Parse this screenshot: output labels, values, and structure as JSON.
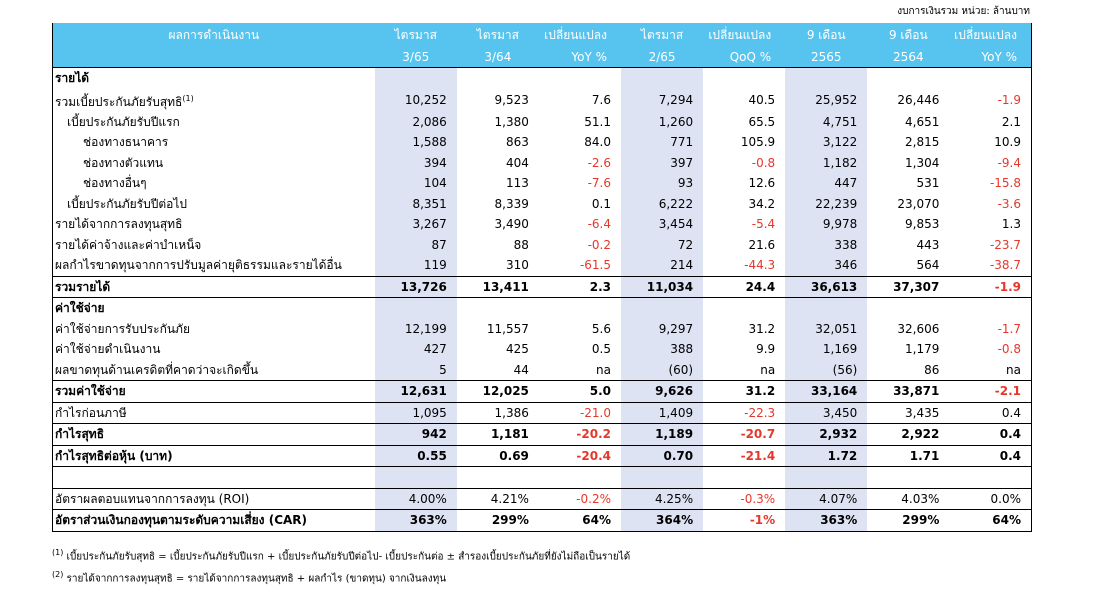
{
  "unit_note": "งบการเงินรวม  หน่วย: ล้านบาท",
  "header": {
    "row1": [
      "ผลการดำเนินงาน",
      "ไตรมาส",
      "ไตรมาส",
      "เปลี่ยนแปลง",
      "ไตรมาส",
      "เปลี่ยนแปลง",
      "9 เดือน",
      "9 เดือน",
      "เปลี่ยนแปลง"
    ],
    "row2": [
      "",
      "3/65",
      "3/64",
      "YoY %",
      "2/65",
      "QoQ %",
      "2565",
      "2564",
      "YoY %"
    ]
  },
  "colors": {
    "header_bg": "#56c4ef",
    "shade": "#dde3f3",
    "negative": "#e6372b"
  },
  "rows": [
    {
      "label": "รายได้",
      "type": "section",
      "values": [
        "",
        "",
        "",
        "",
        "",
        "",
        "",
        ""
      ]
    },
    {
      "label": "รวมเบี้ยประกันภัยรับสุทธิ",
      "sup": "(1)",
      "values": [
        "10,252",
        "9,523",
        "7.6",
        "7,294",
        "40.5",
        "25,952",
        "26,446",
        "-1.9"
      ]
    },
    {
      "label": "เบี้ยประกันภัยรับปีแรก",
      "indent": 1,
      "values": [
        "2,086",
        "1,380",
        "51.1",
        "1,260",
        "65.5",
        "4,751",
        "4,651",
        "2.1"
      ]
    },
    {
      "label": "ช่องทางธนาคาร",
      "indent": 2,
      "values": [
        "1,588",
        "863",
        "84.0",
        "771",
        "105.9",
        "3,122",
        "2,815",
        "10.9"
      ]
    },
    {
      "label": "ช่องทางตัวแทน",
      "indent": 2,
      "values": [
        "394",
        "404",
        "-2.6",
        "397",
        "-0.8",
        "1,182",
        "1,304",
        "-9.4"
      ]
    },
    {
      "label": "ช่องทางอื่นๆ",
      "indent": 2,
      "values": [
        "104",
        "113",
        "-7.6",
        "93",
        "12.6",
        "447",
        "531",
        "-15.8"
      ]
    },
    {
      "label": "เบี้ยประกันภัยรับปีต่อไป",
      "indent": 1,
      "values": [
        "8,351",
        "8,339",
        "0.1",
        "6,222",
        "34.2",
        "22,239",
        "23,070",
        "-3.6"
      ]
    },
    {
      "label": "รายได้จากการลงทุนสุทธิ",
      "values": [
        "3,267",
        "3,490",
        "-6.4",
        "3,454",
        "-5.4",
        "9,978",
        "9,853",
        "1.3"
      ]
    },
    {
      "label": "รายได้ค่าจ้างและค่าบำเหน็จ",
      "values": [
        "87",
        "88",
        "-0.2",
        "72",
        "21.6",
        "338",
        "443",
        "-23.7"
      ]
    },
    {
      "label": "ผลกำไรขาดทุนจากการปรับมูลค่ายุติธรรมและรายได้อื่น",
      "values": [
        "119",
        "310",
        "-61.5",
        "214",
        "-44.3",
        "346",
        "564",
        "-38.7"
      ]
    },
    {
      "label": "รวมรายได้",
      "type": "total",
      "values": [
        "13,726",
        "13,411",
        "2.3",
        "11,034",
        "24.4",
        "36,613",
        "37,307",
        "-1.9"
      ]
    },
    {
      "label": "ค่าใช้จ่าย",
      "type": "section",
      "values": [
        "",
        "",
        "",
        "",
        "",
        "",
        "",
        ""
      ]
    },
    {
      "label": "ค่าใช้จ่ายการรับประกันภัย",
      "values": [
        "12,199",
        "11,557",
        "5.6",
        "9,297",
        "31.2",
        "32,051",
        "32,606",
        "-1.7"
      ]
    },
    {
      "label": "ค่าใช้จ่ายดำเนินงาน",
      "values": [
        "427",
        "425",
        "0.5",
        "388",
        "9.9",
        "1,169",
        "1,179",
        "-0.8"
      ]
    },
    {
      "label": "ผลขาดทุนด้านเครดิตที่คาดว่าจะเกิดขึ้น",
      "values": [
        "5",
        "44",
        "na",
        "(60)",
        "na",
        "(56)",
        "86",
        "na"
      ]
    },
    {
      "label": "รวมค่าใช้จ่าย",
      "type": "total",
      "values": [
        "12,631",
        "12,025",
        "5.0",
        "9,626",
        "31.2",
        "33,164",
        "33,871",
        "-2.1"
      ]
    },
    {
      "label": "กำไรก่อนภาษี",
      "values": [
        "1,095",
        "1,386",
        "-21.0",
        "1,409",
        "-22.3",
        "3,450",
        "3,435",
        "0.4"
      ]
    },
    {
      "label": "กำไรสุทธิ",
      "type": "total",
      "values": [
        "942",
        "1,181",
        "-20.2",
        "1,189",
        "-20.7",
        "2,932",
        "2,922",
        "0.4"
      ]
    },
    {
      "label": "กำไรสุทธิต่อหุ้น (บาท)",
      "type": "total",
      "values": [
        "0.55",
        "0.69",
        "-20.4",
        "0.70",
        "-21.4",
        "1.72",
        "1.71",
        "0.4"
      ]
    },
    {
      "label": "",
      "type": "blank",
      "values": [
        "",
        "",
        "",
        "",
        "",
        "",
        "",
        ""
      ]
    },
    {
      "label": "อัตราผลตอบแทนจากการลงทุน (ROI)",
      "values": [
        "4.00%",
        "4.21%",
        "-0.2%",
        "4.25%",
        "-0.3%",
        "4.07%",
        "4.03%",
        "0.0%"
      ]
    },
    {
      "label": "อัตราส่วนเงินกองทุนตามระดับความเสี่ยง (CAR)",
      "type": "total",
      "values": [
        "363%",
        "299%",
        "64%",
        "364%",
        "-1%",
        "363%",
        "299%",
        "64%"
      ]
    }
  ],
  "footnotes": [
    {
      "sup": "(1)",
      "text": " เบี้ยประกันภัยรับสุทธิ = เบี้ยประกันภัยรับปีแรก + เบี้ยประกันภัยรับปีต่อไป- เบี้ยประกันต่อ ± สำรองเบี้ยประกันภัยที่ยังไม่ถือเป็นรายได้"
    },
    {
      "sup": "(2)",
      "text": " รายได้จากการลงทุนสุทธิ = รายได้จากการลงทุนสุทธิ + ผลกำไร (ขาดทุน) จากเงินลงทุน"
    }
  ]
}
